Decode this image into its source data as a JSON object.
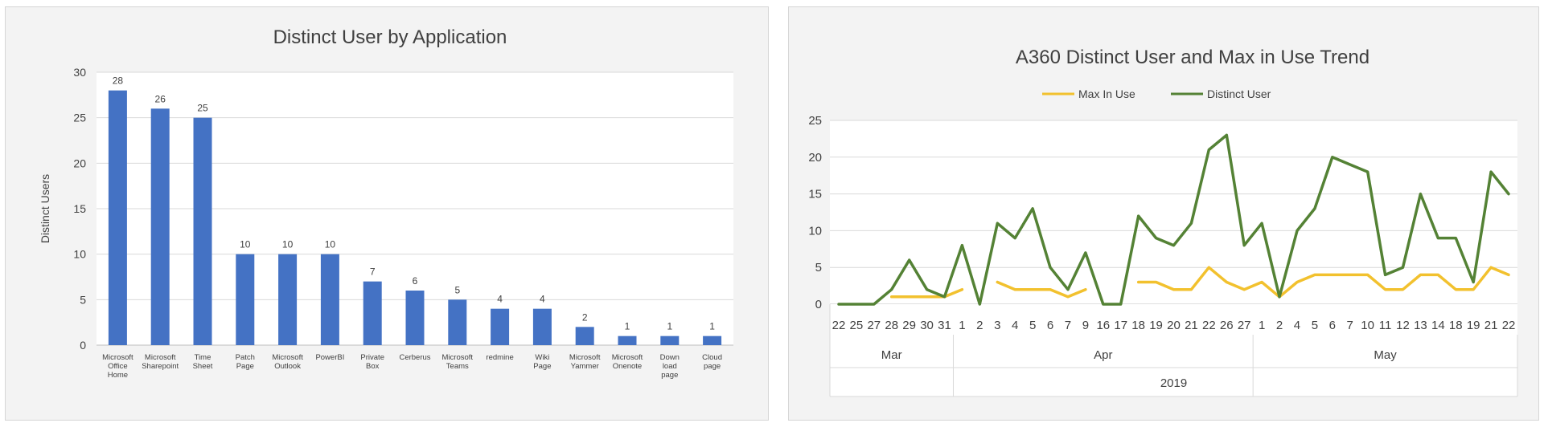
{
  "charts": [
    {
      "type": "bar",
      "title": "Distinct User by Application",
      "xlabel": "",
      "ylabel": "Distinct Users",
      "ylim": [
        0,
        30
      ],
      "yticks": [
        0,
        5,
        10,
        15,
        20,
        25,
        30
      ],
      "categories": [
        [
          "Microsoft",
          "Office",
          "Home"
        ],
        [
          "Microsoft",
          "Sharepoint"
        ],
        [
          "Time",
          "Sheet"
        ],
        [
          "Patch",
          "Page"
        ],
        [
          "Microsoft",
          "Outlook"
        ],
        [
          "PowerBI"
        ],
        [
          "Private",
          "Box"
        ],
        [
          "Cerberus"
        ],
        [
          "Microsoft",
          "Teams"
        ],
        [
          "redmine"
        ],
        [
          "Wiki",
          "Page"
        ],
        [
          "Microsoft",
          "Yammer"
        ],
        [
          "Microsoft",
          "Onenote"
        ],
        [
          "Down",
          "load",
          "page"
        ],
        [
          "Cloud",
          "page"
        ]
      ],
      "values": [
        28,
        26,
        25,
        10,
        10,
        10,
        7,
        6,
        5,
        4,
        4,
        2,
        1,
        1,
        1
      ],
      "bar_color": "#4472c4",
      "grid": true
    },
    {
      "type": "line",
      "title": "A360 Distinct User and Max in Use Trend",
      "ylim": [
        0,
        25
      ],
      "yticks": [
        0,
        5,
        10,
        15,
        20,
        25
      ],
      "legend_position": "top",
      "x": [
        "22",
        "25",
        "27",
        "28",
        "29",
        "30",
        "31",
        "1",
        "2",
        "3",
        "4",
        "5",
        "6",
        "7",
        "9",
        "16",
        "17",
        "18",
        "19",
        "20",
        "21",
        "22",
        "26",
        "27",
        "1",
        "2",
        "4",
        "5",
        "6",
        "7",
        "10",
        "11",
        "12",
        "13",
        "14",
        "18",
        "19",
        "21",
        "22"
      ],
      "month_groups": [
        {
          "label": "Mar",
          "count": 7
        },
        {
          "label": "Apr",
          "count": 17
        },
        {
          "label": "May",
          "count": 15
        }
      ],
      "year_label": "2019",
      "series": [
        {
          "name": "Max In Use",
          "color": "#f2c12e",
          "values": [
            null,
            null,
            null,
            1,
            1,
            1,
            1,
            2,
            null,
            3,
            2,
            2,
            2,
            1,
            2,
            null,
            null,
            3,
            3,
            2,
            2,
            5,
            3,
            2,
            3,
            1,
            3,
            4,
            4,
            4,
            4,
            2,
            2,
            4,
            4,
            2,
            2,
            5,
            4
          ]
        },
        {
          "name": "Distinct User",
          "color": "#548235",
          "values": [
            0,
            0,
            0,
            2,
            6,
            2,
            1,
            8,
            0,
            11,
            9,
            13,
            5,
            2,
            7,
            0,
            0,
            12,
            9,
            8,
            11,
            21,
            23,
            8,
            11,
            1,
            10,
            13,
            20,
            19,
            18,
            4,
            5,
            15,
            9,
            9,
            3,
            18,
            15
          ]
        }
      ],
      "grid": true
    }
  ]
}
